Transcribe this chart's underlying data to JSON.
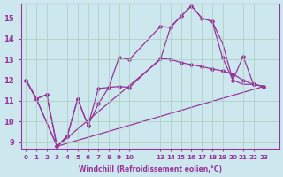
{
  "xlabel": "Windchill (Refroidissement éolien,°C)",
  "background_color": "#cce8ee",
  "grid_color": "#aaccbb",
  "line_color": "#993399",
  "ylim": [
    8.7,
    15.7
  ],
  "yticks": [
    9,
    10,
    11,
    12,
    13,
    14,
    15
  ],
  "xtick_positions": [
    0,
    1,
    2,
    3,
    4,
    5,
    6,
    7,
    8,
    9,
    10,
    13,
    14,
    15,
    16,
    17,
    18,
    19,
    20,
    21,
    22,
    23
  ],
  "xtick_labels": [
    "0",
    "1",
    "2",
    "3",
    "4",
    "5",
    "6",
    "7",
    "8",
    "9",
    "10",
    "13",
    "14",
    "15",
    "16",
    "17",
    "18",
    "19",
    "20",
    "21",
    "22",
    "23"
  ],
  "line1_x": [
    0,
    1,
    2,
    3,
    4,
    5,
    6,
    7,
    8,
    9,
    10,
    13,
    14,
    15,
    16,
    17,
    18,
    19,
    20,
    21,
    22,
    23
  ],
  "line1_y": [
    12.0,
    11.1,
    11.3,
    8.8,
    9.3,
    11.1,
    9.8,
    10.85,
    11.65,
    11.7,
    11.65,
    13.05,
    13.0,
    12.85,
    12.75,
    12.65,
    12.55,
    12.45,
    12.3,
    12.0,
    11.8,
    11.7
  ],
  "line2_x": [
    0,
    1,
    2,
    3,
    4,
    5,
    6,
    7,
    8,
    9,
    10,
    13,
    14,
    15,
    16,
    17,
    18,
    19,
    20,
    21,
    22,
    23
  ],
  "line2_y": [
    12.0,
    11.1,
    11.3,
    8.8,
    9.3,
    11.1,
    9.8,
    11.6,
    11.65,
    13.1,
    13.0,
    14.6,
    14.55,
    15.1,
    15.6,
    15.0,
    14.85,
    13.1,
    12.0,
    13.15,
    11.8,
    11.7
  ],
  "line3_x": [
    0,
    1,
    3,
    13,
    14,
    15,
    16,
    17,
    18,
    19,
    20,
    21,
    22,
    23
  ],
  "line3_y": [
    12.0,
    11.1,
    8.8,
    13.0,
    14.6,
    15.1,
    15.6,
    15.0,
    14.85,
    13.8,
    12.0,
    11.8,
    11.8,
    11.7
  ],
  "line4_x": [
    0,
    1,
    3,
    23
  ],
  "line4_y": [
    12.0,
    11.1,
    8.8,
    11.7
  ]
}
